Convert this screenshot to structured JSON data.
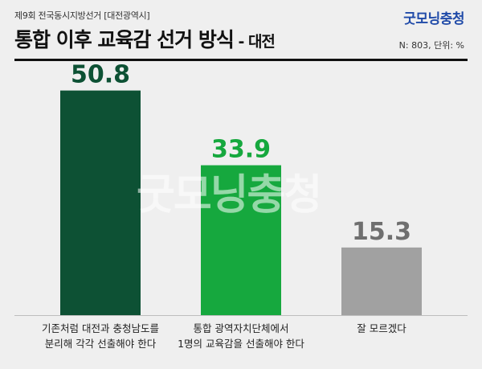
{
  "header": {
    "subtitle": "제9회 전국동시지방선거 [대전광역시]",
    "brand": "굿모닝충청",
    "title_main": "통합 이후 교육감 선거 방식",
    "title_region": " - 대전",
    "meta": "N: 803, 단위: %"
  },
  "watermark": "굿모닝충청",
  "colors": {
    "bar1": "#0d5134",
    "bar2": "#16a83e",
    "bar3": "#a1a1a1",
    "value1": "#0d5134",
    "value2": "#16a83e",
    "value3": "#6f6f6f"
  },
  "chart_data": {
    "type": "bar",
    "categories": [
      [
        "기존처럼 대전과 충청남도를",
        "분리해 각각 선출해야 한다"
      ],
      [
        "통합 광역자치단체에서",
        "1명의 교육감을 선출해야 한다"
      ],
      [
        "잘 모르겠다"
      ]
    ],
    "values": [
      50.8,
      33.9,
      15.3
    ],
    "value_labels": [
      "50.8",
      "33.9",
      "15.3"
    ],
    "ylim": [
      0,
      60
    ],
    "grid": false,
    "legend": "none"
  }
}
